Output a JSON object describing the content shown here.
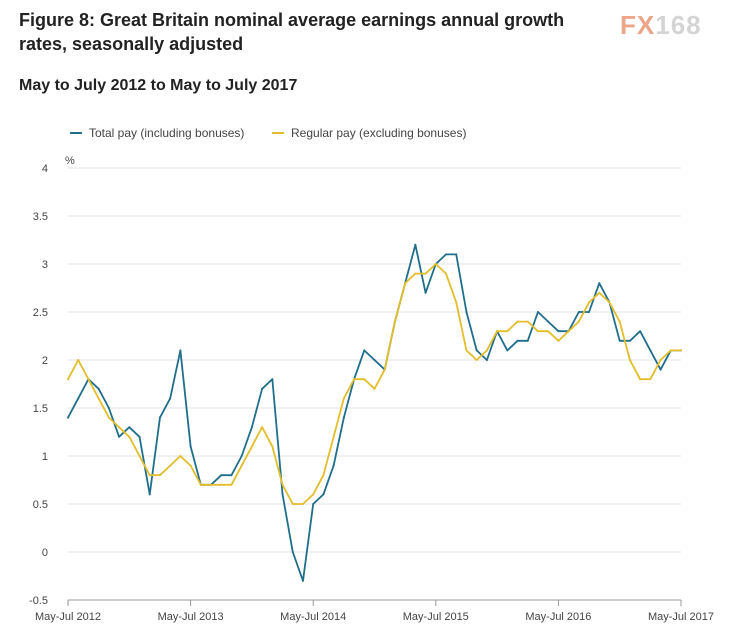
{
  "header": {
    "title": "Figure 8: Great Britain nominal average earnings annual growth rates, seasonally adjusted",
    "subtitle": "May to July 2012 to May to July 2017"
  },
  "logo": {
    "fx": "FX",
    "num": "168"
  },
  "colors": {
    "total": "#1f6e8c",
    "regular": "#e3bd2a",
    "grid": "#e3e3e3",
    "axis": "#999999",
    "tick_text": "#444444"
  },
  "chart_data": {
    "type": "line",
    "title": "",
    "ylabel": "%",
    "xlabel": "",
    "ylim": [
      -0.5,
      4
    ],
    "yticks": [
      -0.5,
      0,
      0.5,
      1,
      1.5,
      2,
      2.5,
      3,
      3.5,
      4
    ],
    "ytick_labels": [
      "-0.5",
      "0",
      "0.5",
      "1",
      "1.5",
      "2",
      "2.5",
      "3",
      "3.5",
      "4"
    ],
    "xticks": [
      {
        "index": 0,
        "label": "May-Jul 2012"
      },
      {
        "index": 12,
        "label": "May-Jul 2013"
      },
      {
        "index": 24,
        "label": "May-Jul 2014"
      },
      {
        "index": 36,
        "label": "May-Jul 2015"
      },
      {
        "index": 48,
        "label": "May-Jul 2016"
      },
      {
        "index": 60,
        "label": "May-Jul 2017"
      }
    ],
    "legend_position": "top-left",
    "series": [
      {
        "name": "Total pay (including bonuses)",
        "key": "total",
        "values": [
          1.4,
          1.6,
          1.8,
          1.7,
          1.5,
          1.2,
          1.3,
          1.2,
          0.6,
          1.4,
          1.6,
          2.1,
          1.1,
          0.7,
          0.7,
          0.8,
          0.8,
          1.0,
          1.3,
          1.7,
          1.8,
          0.6,
          0.0,
          -0.3,
          0.5,
          0.6,
          0.9,
          1.4,
          1.8,
          2.1,
          2.0,
          1.9,
          2.4,
          2.8,
          3.2,
          2.7,
          3.0,
          3.1,
          3.1,
          2.5,
          2.1,
          2.0,
          2.3,
          2.1,
          2.2,
          2.2,
          2.5,
          2.4,
          2.3,
          2.3,
          2.5,
          2.5,
          2.8,
          2.6,
          2.2,
          2.2,
          2.3,
          2.1,
          1.9,
          2.1,
          2.1
        ]
      },
      {
        "name": "Regular pay (excluding bonuses)",
        "key": "regular",
        "values": [
          1.8,
          2.0,
          1.8,
          1.6,
          1.4,
          1.3,
          1.2,
          1.0,
          0.8,
          0.8,
          0.9,
          1.0,
          0.9,
          0.7,
          0.7,
          0.7,
          0.7,
          0.9,
          1.1,
          1.3,
          1.1,
          0.7,
          0.5,
          0.5,
          0.6,
          0.8,
          1.2,
          1.6,
          1.8,
          1.8,
          1.7,
          1.9,
          2.4,
          2.8,
          2.9,
          2.9,
          3.0,
          2.9,
          2.6,
          2.1,
          2.0,
          2.1,
          2.3,
          2.3,
          2.4,
          2.4,
          2.3,
          2.3,
          2.2,
          2.3,
          2.4,
          2.6,
          2.7,
          2.6,
          2.4,
          2.0,
          1.8,
          1.8,
          2.0,
          2.1,
          2.1
        ]
      }
    ]
  }
}
